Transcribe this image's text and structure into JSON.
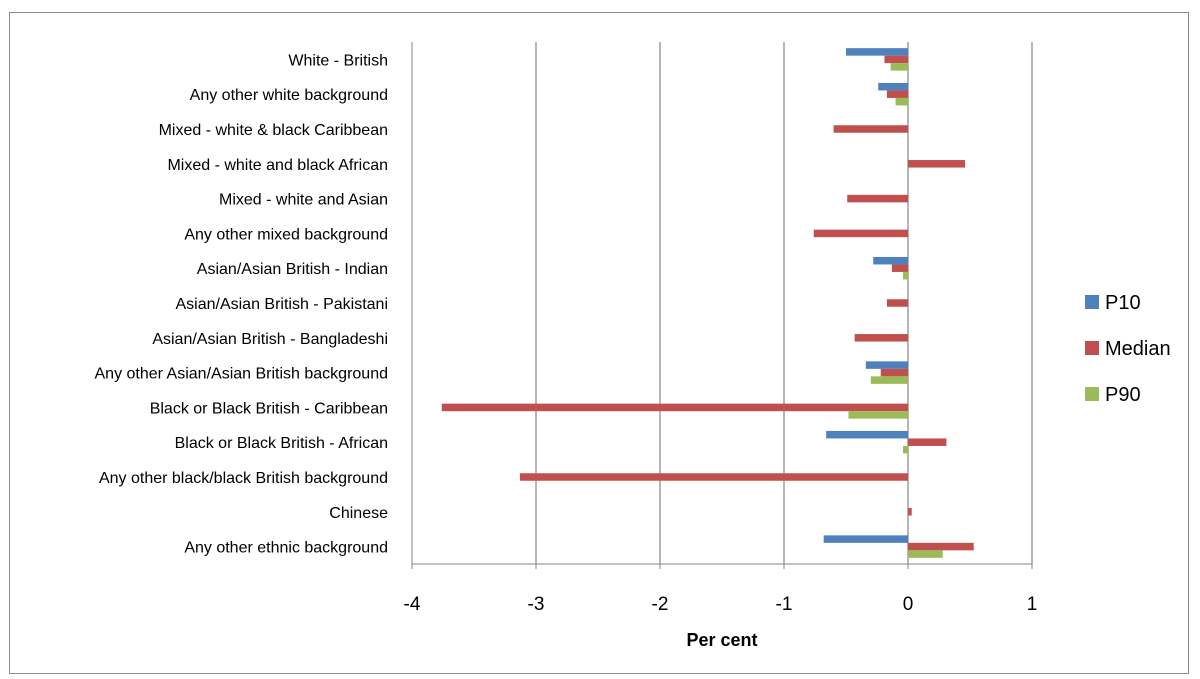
{
  "chart_data": {
    "type": "bar",
    "orientation": "horizontal",
    "title": "",
    "xlabel": "Per cent",
    "ylabel": "",
    "xlim": [
      -4,
      1
    ],
    "xticks": [
      -4,
      -3,
      -2,
      -1,
      0,
      1
    ],
    "grid": true,
    "legend_position": "right",
    "categories": [
      "White - British",
      "Any other white background",
      "Mixed - white & black Caribbean",
      "Mixed - white and black African",
      "Mixed - white and Asian",
      "Any other mixed background",
      "Asian/Asian British - Indian",
      "Asian/Asian British - Pakistani",
      "Asian/Asian British - Bangladeshi",
      "Any other Asian/Asian British background",
      "Black or Black British - Caribbean",
      "Black or Black British - African",
      "Any other black/black British background",
      "Chinese",
      "Any other ethnic background"
    ],
    "series": [
      {
        "name": "P10",
        "color": "#4f81bd",
        "values": [
          -0.5,
          -0.24,
          0,
          0,
          0,
          0,
          -0.28,
          0,
          0,
          -0.34,
          0,
          -0.66,
          0,
          0,
          -0.68
        ]
      },
      {
        "name": "Median",
        "color": "#c0504d",
        "values": [
          -0.19,
          -0.17,
          -0.6,
          0.46,
          -0.49,
          -0.76,
          -0.13,
          -0.17,
          -0.43,
          -0.22,
          -3.76,
          0.31,
          -3.13,
          0.03,
          0.53
        ]
      },
      {
        "name": "P90",
        "color": "#9bbb59",
        "values": [
          -0.14,
          -0.1,
          0,
          0,
          0,
          0,
          -0.04,
          0,
          0,
          -0.3,
          -0.48,
          -0.04,
          0,
          0,
          0.28
        ]
      }
    ]
  }
}
